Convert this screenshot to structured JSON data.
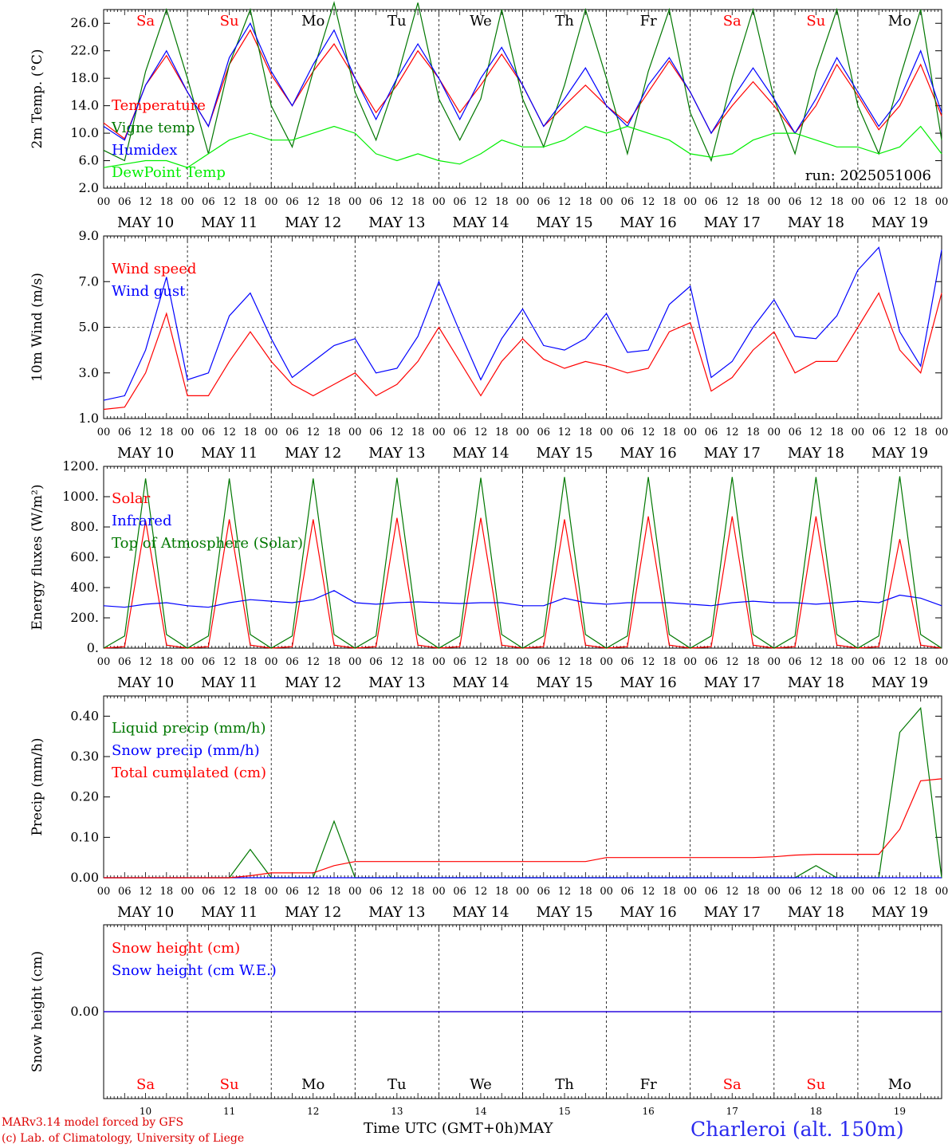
{
  "chart_data": [
    {
      "type": "line",
      "ylabel": "2m Temp. (°C)",
      "ylim": [
        2,
        28
      ],
      "yticks": [
        "2.0",
        "6.0",
        "10.0",
        "14.0",
        "18.0",
        "22.0",
        "26.0"
      ],
      "annotation": "run: 2025051006",
      "day_labels": [
        "Sa",
        "Su",
        "Mo",
        "Tu",
        "We",
        "Th",
        "Fr",
        "Sa",
        "Su",
        "Mo"
      ],
      "x_hours": [
        0,
        6,
        12,
        18,
        24,
        30,
        36,
        42,
        48,
        54,
        60,
        66,
        72,
        78,
        84,
        90,
        96,
        102,
        108,
        114,
        120,
        126,
        132,
        138,
        144,
        150,
        156,
        162,
        168,
        174,
        180,
        186,
        192,
        198,
        204,
        210,
        216,
        222,
        228,
        234,
        240
      ],
      "series": [
        {
          "name": "Temperature",
          "color": "#ff0000",
          "values": [
            11.5,
            9.2,
            17,
            21.3,
            16,
            11,
            20,
            25,
            18.5,
            14,
            19,
            23,
            18,
            13,
            17,
            22,
            18,
            13,
            17,
            21.5,
            17,
            11,
            14,
            17,
            14,
            11.5,
            16,
            20.5,
            16,
            10,
            14,
            17.5,
            14,
            10,
            14,
            20,
            15.5,
            10.5,
            14,
            20,
            12.5
          ]
        },
        {
          "name": "Vigne temp",
          "color": "#007700",
          "values": [
            7.5,
            6,
            19,
            28,
            18,
            7,
            20,
            28,
            14,
            8,
            19,
            29,
            16,
            9,
            18,
            29,
            15,
            9,
            15,
            28,
            15,
            8,
            17,
            28,
            18,
            7,
            19,
            28,
            13,
            6,
            18,
            28,
            15,
            7,
            19,
            28,
            14,
            7,
            18,
            28,
            9
          ]
        },
        {
          "name": "Humidex",
          "color": "#0000ff",
          "values": [
            11,
            9,
            17,
            22,
            16,
            11,
            21,
            26,
            19,
            14,
            20,
            25,
            18,
            12,
            18,
            23,
            18,
            12,
            18,
            22.5,
            17,
            11,
            15,
            19.5,
            14,
            11,
            17,
            21,
            16,
            10,
            15,
            19.5,
            15,
            10,
            15,
            21,
            16,
            11,
            15,
            22,
            13
          ]
        },
        {
          "name": "DewPoint Temp",
          "color": "#00ee00",
          "values": [
            5,
            5.5,
            6,
            6,
            5,
            7,
            9,
            10,
            9,
            9,
            10,
            11,
            10,
            7,
            6,
            7,
            6,
            5.5,
            7,
            9,
            8,
            8,
            9,
            11,
            10,
            11,
            10,
            9,
            7,
            6.5,
            7,
            9,
            10,
            10,
            9,
            8,
            8,
            7,
            8,
            11,
            7
          ]
        }
      ]
    },
    {
      "type": "line",
      "ylabel": "10m Wind (m/s)",
      "ylim": [
        1,
        9
      ],
      "yticks": [
        "1.0",
        "3.0",
        "5.0",
        "7.0",
        "9.0"
      ],
      "x_hours": [
        0,
        6,
        12,
        18,
        24,
        30,
        36,
        42,
        48,
        54,
        60,
        66,
        72,
        78,
        84,
        90,
        96,
        102,
        108,
        114,
        120,
        126,
        132,
        138,
        144,
        150,
        156,
        162,
        168,
        174,
        180,
        186,
        192,
        198,
        204,
        210,
        216,
        222,
        228,
        234,
        240
      ],
      "series": [
        {
          "name": "Wind speed",
          "color": "#ff0000",
          "values": [
            1.4,
            1.5,
            3,
            5.6,
            2,
            2,
            3.5,
            4.8,
            3.5,
            2.5,
            2,
            2.5,
            3,
            2,
            2.5,
            3.5,
            5,
            3.5,
            2,
            3.5,
            4.5,
            3.6,
            3.2,
            3.5,
            3.3,
            3,
            3.2,
            4.8,
            5.2,
            2.2,
            2.8,
            4,
            4.8,
            3,
            3.5,
            3.5,
            5,
            6.5,
            4,
            3,
            6.5
          ]
        },
        {
          "name": "Wind gust",
          "color": "#0000ff",
          "values": [
            1.8,
            2,
            4,
            7.2,
            2.7,
            3,
            5.5,
            6.5,
            4.5,
            2.8,
            3.5,
            4.2,
            4.5,
            3,
            3.2,
            4.6,
            7,
            4.8,
            2.7,
            4.5,
            5.8,
            4.2,
            4,
            4.5,
            5.6,
            3.9,
            4,
            6,
            6.8,
            2.8,
            3.5,
            5,
            6.2,
            4.6,
            4.5,
            5.5,
            7.5,
            8.5,
            4.8,
            3.3,
            8.4
          ]
        }
      ]
    },
    {
      "type": "line",
      "ylabel": "Energy fluxes (W/m²)",
      "ylim": [
        0,
        1200
      ],
      "yticks": [
        "0.",
        "200.",
        "400.",
        "600.",
        "800.",
        "1000.",
        "1200."
      ],
      "x_hours": [
        0,
        6,
        12,
        18,
        24,
        30,
        36,
        42,
        48,
        54,
        60,
        66,
        72,
        78,
        84,
        90,
        96,
        102,
        108,
        114,
        120,
        126,
        132,
        138,
        144,
        150,
        156,
        162,
        168,
        174,
        180,
        186,
        192,
        198,
        204,
        210,
        216,
        222,
        228,
        234,
        240
      ],
      "series": [
        {
          "name": "Solar",
          "color": "#ff0000",
          "values": [
            0,
            10,
            840,
            20,
            0,
            10,
            850,
            20,
            0,
            10,
            850,
            20,
            0,
            10,
            860,
            20,
            0,
            10,
            860,
            20,
            0,
            10,
            850,
            20,
            0,
            10,
            870,
            20,
            0,
            10,
            870,
            20,
            0,
            10,
            870,
            20,
            0,
            10,
            720,
            20,
            0
          ]
        },
        {
          "name": "Infrared",
          "color": "#0000ff",
          "values": [
            280,
            270,
            290,
            300,
            280,
            270,
            300,
            320,
            310,
            300,
            320,
            380,
            300,
            290,
            300,
            305,
            300,
            295,
            300,
            300,
            280,
            280,
            330,
            300,
            290,
            300,
            300,
            300,
            290,
            280,
            300,
            310,
            300,
            300,
            290,
            300,
            310,
            300,
            350,
            330,
            280
          ]
        },
        {
          "name": "Top of Atmosphere (Solar)",
          "color": "#007700",
          "values": [
            0,
            80,
            1120,
            90,
            0,
            80,
            1120,
            90,
            0,
            80,
            1120,
            90,
            0,
            80,
            1125,
            90,
            0,
            80,
            1125,
            90,
            0,
            80,
            1130,
            90,
            0,
            80,
            1130,
            90,
            0,
            80,
            1130,
            90,
            0,
            80,
            1130,
            90,
            0,
            80,
            1135,
            90,
            0
          ]
        }
      ]
    },
    {
      "type": "line",
      "ylabel": "Precip (mm/h)",
      "ylim": [
        0,
        0.45
      ],
      "yticks": [
        "0.00",
        "0.10",
        "0.20",
        "0.30",
        "0.40"
      ],
      "x_hours": [
        0,
        6,
        12,
        18,
        24,
        30,
        36,
        42,
        48,
        54,
        60,
        66,
        72,
        78,
        84,
        90,
        96,
        102,
        108,
        114,
        120,
        126,
        132,
        138,
        144,
        150,
        156,
        162,
        168,
        174,
        180,
        186,
        192,
        198,
        204,
        210,
        216,
        222,
        228,
        234,
        240
      ],
      "series": [
        {
          "name": "Liquid precip (mm/h)",
          "color": "#007700",
          "values": [
            0,
            0,
            0,
            0,
            0,
            0,
            0,
            0.07,
            0,
            0,
            0,
            0.14,
            0,
            0,
            0,
            0,
            0,
            0,
            0,
            0,
            0,
            0,
            0,
            0,
            0,
            0,
            0,
            0,
            0,
            0,
            0,
            0,
            0,
            0,
            0.03,
            0,
            0,
            0,
            0.36,
            0.42,
            0
          ]
        },
        {
          "name": "Snow precip (mm/h)",
          "color": "#0000ff",
          "values": [
            0,
            0,
            0,
            0,
            0,
            0,
            0,
            0,
            0,
            0,
            0,
            0,
            0,
            0,
            0,
            0,
            0,
            0,
            0,
            0,
            0,
            0,
            0,
            0,
            0,
            0,
            0,
            0,
            0,
            0,
            0,
            0,
            0,
            0,
            0,
            0,
            0,
            0,
            0,
            0,
            0
          ]
        },
        {
          "name": "Total cumulated (cm)",
          "color": "#ff0000",
          "values": [
            0,
            0,
            0,
            0,
            0,
            0,
            0,
            0.005,
            0.012,
            0.012,
            0.012,
            0.03,
            0.04,
            0.04,
            0.04,
            0.04,
            0.04,
            0.04,
            0.04,
            0.04,
            0.04,
            0.04,
            0.04,
            0.04,
            0.05,
            0.05,
            0.05,
            0.05,
            0.05,
            0.05,
            0.05,
            0.05,
            0.052,
            0.056,
            0.058,
            0.058,
            0.058,
            0.058,
            0.12,
            0.24,
            0.245
          ]
        }
      ]
    },
    {
      "type": "line",
      "ylabel": "Snow height (cm)",
      "ylim": [
        -1,
        1
      ],
      "yticks": [
        "0.00"
      ],
      "x_hours": [
        0,
        240
      ],
      "series": [
        {
          "name": "Snow height (cm)",
          "color": "#ff0000",
          "values": [
            0,
            0
          ]
        },
        {
          "name": "Snow height (cm W.E.)",
          "color": "#0000ff",
          "values": [
            0,
            0
          ]
        }
      ]
    }
  ],
  "x_axis": {
    "hour_ticks": [
      "00",
      "06",
      "12",
      "18"
    ],
    "end_tick": "00",
    "dates": [
      "MAY 10",
      "MAY 11",
      "MAY 12",
      "MAY 13",
      "MAY 14",
      "MAY 15",
      "MAY 16",
      "MAY 17",
      "MAY 18",
      "MAY 19"
    ],
    "bottom_days": [
      "Sa",
      "Su",
      "Mo",
      "Tu",
      "We",
      "Th",
      "Fr",
      "Sa",
      "Su",
      "Mo"
    ],
    "bottom_day_colors": [
      "#ff0000",
      "#ff0000",
      "#000000",
      "#000000",
      "#000000",
      "#000000",
      "#000000",
      "#ff0000",
      "#ff0000",
      "#000000"
    ],
    "day_numbers": [
      "10",
      "11",
      "12",
      "13",
      "14",
      "15",
      "16",
      "17",
      "18",
      "19"
    ]
  },
  "footer": {
    "model_line": "MARv3.14 model forced by GFS",
    "lab_line": "(c) Lab. of Climatology, University of Liege",
    "axis_title": "Time UTC (GMT+0h)MAY",
    "station": "Charleroi (alt. 150m)"
  }
}
